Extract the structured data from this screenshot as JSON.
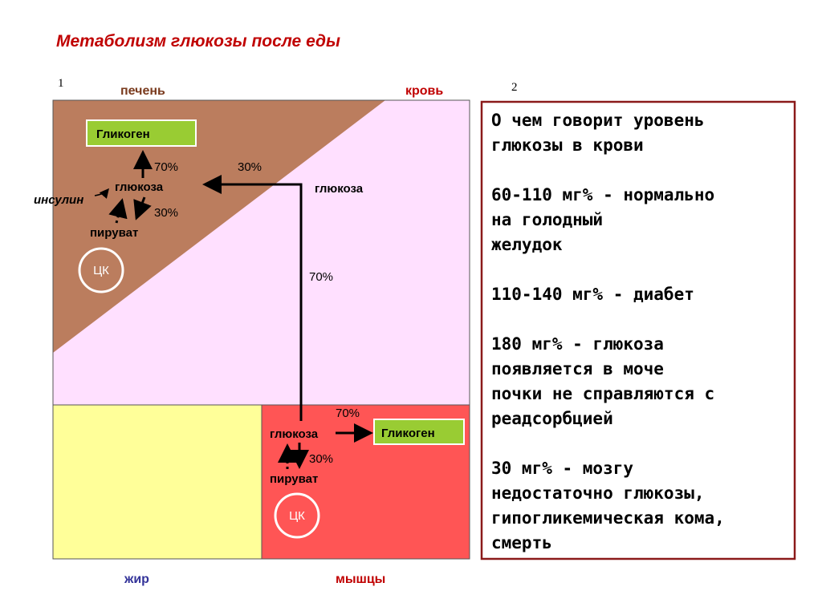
{
  "header": {
    "title": "Метаболизм глюкозы после еды",
    "panel1_number": "1",
    "panel2_number": "2"
  },
  "diagram": {
    "liver_label": "печень",
    "blood_label": "кровь",
    "fat_label": "жир",
    "muscle_label": "мышцы",
    "liver": {
      "glycogen": "Гликоген",
      "to_glycogen": "70%",
      "glucose": "глюкоза",
      "insulin": "инсулин",
      "to_pyruvate": "30%",
      "pyruvate": "пируват",
      "cycle": "ЦК"
    },
    "blood": {
      "glucose": "глюкоза",
      "to_liver": "30%",
      "to_muscle": "70%"
    },
    "muscle": {
      "to_glycogen": "70%",
      "glucose": "глюкоза",
      "glycogen": "Гликоген",
      "to_pyruvate": "30%",
      "pyruvate": "пируват",
      "cycle": "ЦК"
    }
  },
  "panel": {
    "paragraphs": [
      [
        "О чем говорит уровень",
        "глюкозы в крови"
      ],
      [
        "60-110 мг% - нормально",
        "на голодный",
        "желудок"
      ],
      [
        "110-140 мг% - диабет"
      ],
      [
        "180 мг% - глюкоза",
        "появляется в моче",
        "почки не справляются с",
        "реадсорбцией"
      ],
      [
        "30 мг% - мозгу",
        "недостаточно глюкозы,",
        "гипогликемическая кома,",
        "смерть"
      ]
    ]
  }
}
